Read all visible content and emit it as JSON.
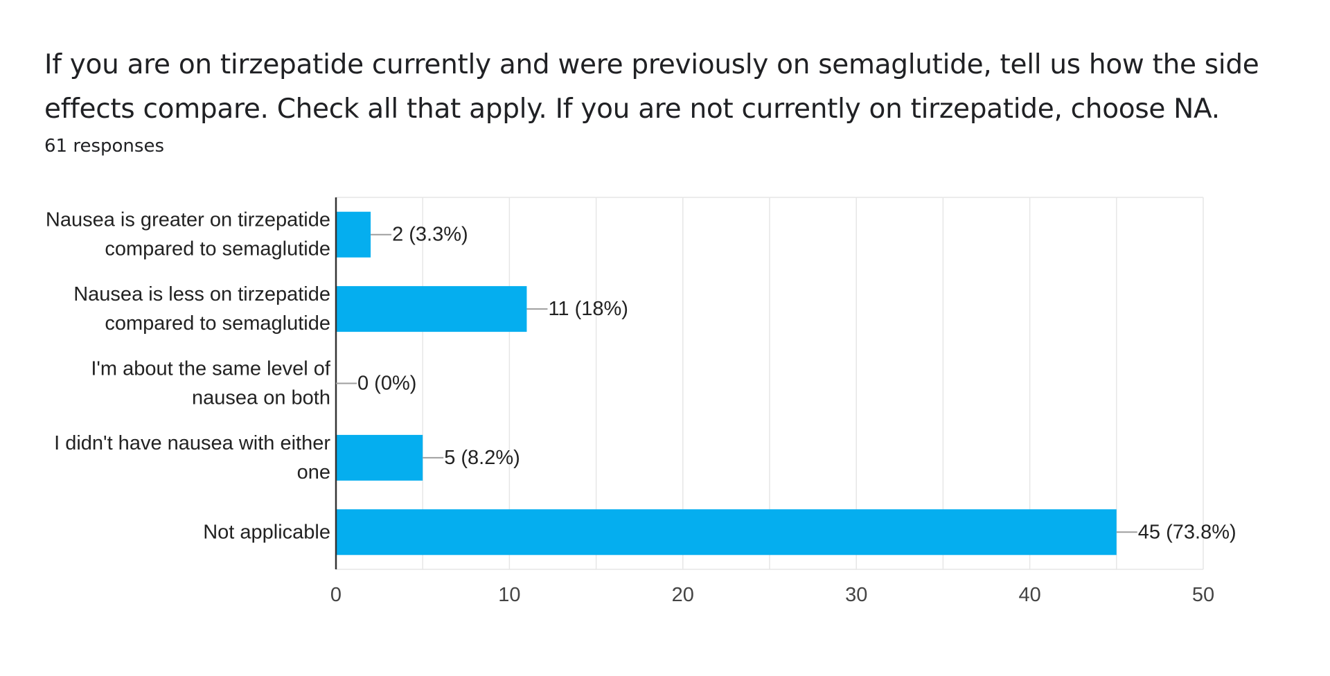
{
  "question": {
    "title": "If you are on tirzepatide currently and were previously on semaglutide, tell us how the side effects compare.  Check all that apply. If you are not currently on tirzepatide, choose NA.",
    "responses": "61 responses"
  },
  "chart_data": {
    "type": "bar",
    "orientation": "horizontal",
    "categories": [
      [
        "Nausea is greater on tirzepatide",
        "compared to semaglutide"
      ],
      [
        "Nausea is less on tirzepatide",
        "compared to semaglutide"
      ],
      [
        "I'm about the same level of",
        "nausea on both"
      ],
      [
        "I didn't have nausea with either",
        "one"
      ],
      [
        "Not applicable"
      ]
    ],
    "values": [
      2,
      11,
      0,
      5,
      45
    ],
    "data_labels": [
      "2 (3.3%)",
      "11 (18%)",
      "0 (0%)",
      "5 (8.2%)",
      "45 (73.8%)"
    ],
    "xlim": [
      0,
      50
    ],
    "x_ticks": [
      0,
      10,
      20,
      30,
      40,
      50
    ],
    "grid": true,
    "colors": {
      "bar": "#05aeef",
      "grid": "#e6e6e6",
      "axis": "#333333",
      "leader": "#9e9e9e"
    }
  }
}
